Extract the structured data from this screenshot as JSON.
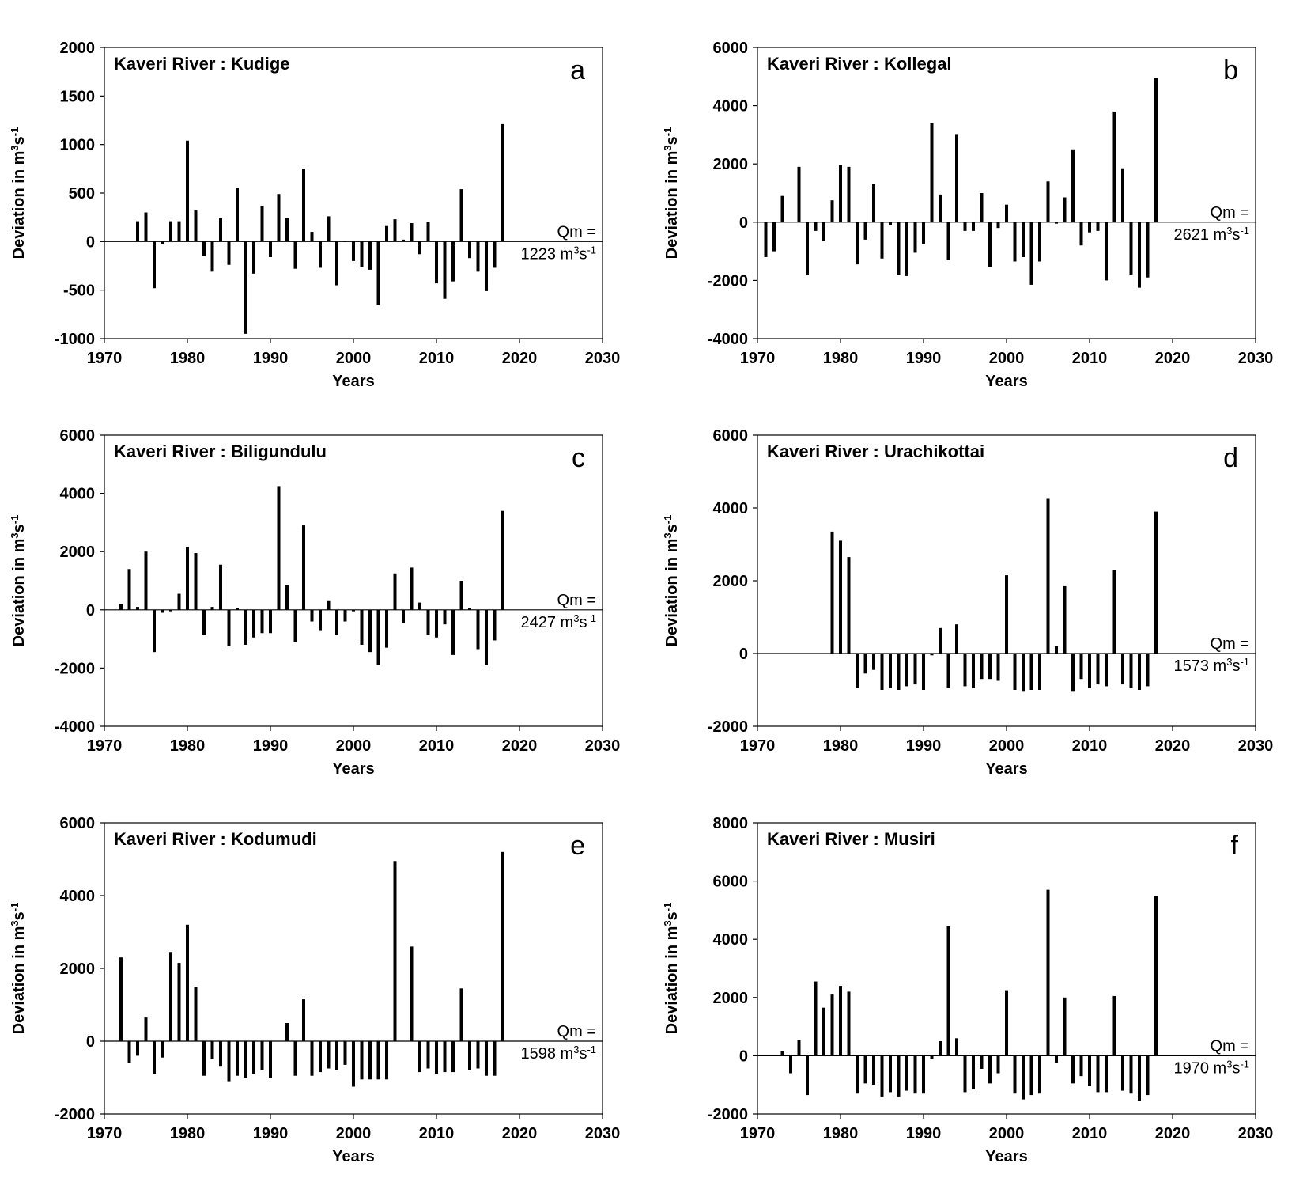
{
  "chart_data": [
    {
      "type": "bar",
      "title": "Kaveri River : Kudige",
      "panel_letter": "a",
      "xlabel": "Years",
      "ylabel": "Deviation in m3s-1",
      "xlim": [
        1970,
        2030
      ],
      "ylim": [
        -1000,
        2000
      ],
      "xticks": [
        1970,
        1980,
        1990,
        2000,
        2010,
        2020,
        2030
      ],
      "yticks": [
        -1000,
        -500,
        0,
        500,
        1000,
        1500,
        2000
      ],
      "qm_label": "Qm =",
      "qm_value": "1223 m3s-1",
      "years": [
        1974,
        1975,
        1976,
        1977,
        1978,
        1979,
        1980,
        1981,
        1982,
        1983,
        1984,
        1985,
        1986,
        1987,
        1988,
        1989,
        1990,
        1991,
        1992,
        1993,
        1994,
        1995,
        1996,
        1997,
        1998,
        1999,
        2000,
        2001,
        2002,
        2003,
        2004,
        2005,
        2006,
        2007,
        2008,
        2009,
        2010,
        2011,
        2012,
        2013,
        2014,
        2015,
        2016,
        2017,
        2018
      ],
      "values": [
        210,
        300,
        -480,
        -30,
        210,
        210,
        1040,
        320,
        -150,
        -310,
        240,
        -240,
        550,
        -950,
        -330,
        370,
        -160,
        490,
        240,
        -280,
        750,
        100,
        -270,
        260,
        -450,
        0,
        -200,
        -260,
        -290,
        -650,
        160,
        230,
        20,
        190,
        -130,
        200,
        -430,
        -590,
        -410,
        540,
        -170,
        -310,
        -510,
        -270,
        1210
      ]
    },
    {
      "type": "bar",
      "title": "Kaveri River : Kollegal",
      "panel_letter": "b",
      "xlabel": "Years",
      "ylabel": "Deviation in m3s-1",
      "xlim": [
        1970,
        2030
      ],
      "ylim": [
        -4000,
        6000
      ],
      "xticks": [
        1970,
        1980,
        1990,
        2000,
        2010,
        2020,
        2030
      ],
      "yticks": [
        -4000,
        -2000,
        0,
        2000,
        4000,
        6000
      ],
      "qm_label": "Qm =",
      "qm_value": "2621 m3s-1",
      "years": [
        1971,
        1972,
        1973,
        1975,
        1976,
        1977,
        1978,
        1979,
        1980,
        1981,
        1982,
        1983,
        1984,
        1985,
        1986,
        1987,
        1988,
        1989,
        1990,
        1991,
        1992,
        1993,
        1994,
        1995,
        1996,
        1997,
        1998,
        1999,
        2000,
        2001,
        2002,
        2003,
        2004,
        2005,
        2006,
        2007,
        2008,
        2009,
        2010,
        2011,
        2012,
        2013,
        2014,
        2015,
        2016,
        2017,
        2018
      ],
      "values": [
        -1200,
        -1000,
        900,
        1900,
        -1800,
        -300,
        -650,
        750,
        1950,
        1900,
        -1450,
        -600,
        1300,
        -1250,
        -100,
        -1800,
        -1850,
        -1050,
        -750,
        3400,
        950,
        -1300,
        3000,
        -300,
        -300,
        1000,
        -1550,
        -200,
        600,
        -1350,
        -1200,
        -2150,
        -1350,
        1400,
        -50,
        850,
        2500,
        -800,
        -350,
        -300,
        -2000,
        3800,
        1850,
        -1800,
        -2250,
        -1900,
        4950
      ]
    },
    {
      "type": "bar",
      "title": "Kaveri River : Biligundulu",
      "panel_letter": "c",
      "xlabel": "Years",
      "ylabel": "Deviation in m3s-1",
      "xlim": [
        1970,
        2030
      ],
      "ylim": [
        -4000,
        6000
      ],
      "xticks": [
        1970,
        1980,
        1990,
        2000,
        2010,
        2020,
        2030
      ],
      "yticks": [
        -4000,
        -2000,
        0,
        2000,
        4000,
        6000
      ],
      "qm_label": "Qm =",
      "qm_value": "2427 m3s-1",
      "years": [
        1972,
        1973,
        1974,
        1975,
        1976,
        1977,
        1978,
        1979,
        1980,
        1981,
        1982,
        1983,
        1984,
        1985,
        1986,
        1987,
        1988,
        1989,
        1990,
        1991,
        1992,
        1993,
        1994,
        1995,
        1996,
        1997,
        1998,
        1999,
        2000,
        2001,
        2002,
        2003,
        2004,
        2005,
        2006,
        2007,
        2008,
        2009,
        2010,
        2011,
        2012,
        2013,
        2014,
        2015,
        2016,
        2017,
        2018
      ],
      "values": [
        200,
        1400,
        100,
        2000,
        -1450,
        -100,
        -50,
        550,
        2150,
        1950,
        -850,
        100,
        1550,
        -1250,
        50,
        -1200,
        -950,
        -800,
        -800,
        4250,
        850,
        -1100,
        2900,
        -400,
        -700,
        300,
        -850,
        -400,
        -50,
        -1200,
        -1450,
        -1900,
        -1300,
        1250,
        -450,
        1450,
        250,
        -850,
        -950,
        -500,
        -1550,
        1000,
        50,
        -1350,
        -1900,
        -1050,
        3400
      ]
    },
    {
      "type": "bar",
      "title": "Kaveri River : Urachikottai",
      "panel_letter": "d",
      "xlabel": "Years",
      "ylabel": "Deviation in m3s-1",
      "xlim": [
        1970,
        2030
      ],
      "ylim": [
        -2000,
        6000
      ],
      "xticks": [
        1970,
        1980,
        1990,
        2000,
        2010,
        2020,
        2030
      ],
      "yticks": [
        -2000,
        0,
        2000,
        4000,
        6000
      ],
      "qm_label": "Qm =",
      "qm_value": "1573 m3s-1",
      "years": [
        1979,
        1980,
        1981,
        1982,
        1983,
        1984,
        1985,
        1986,
        1987,
        1988,
        1989,
        1990,
        1991,
        1992,
        1993,
        1994,
        1995,
        1996,
        1997,
        1998,
        1999,
        2000,
        2001,
        2002,
        2003,
        2004,
        2005,
        2006,
        2007,
        2008,
        2009,
        2010,
        2011,
        2012,
        2013,
        2014,
        2015,
        2016,
        2017,
        2018
      ],
      "values": [
        3350,
        3100,
        2650,
        -950,
        -550,
        -450,
        -1000,
        -950,
        -1000,
        -900,
        -850,
        -1000,
        -50,
        700,
        -950,
        800,
        -900,
        -950,
        -700,
        -700,
        -750,
        2150,
        -1000,
        -1050,
        -1000,
        -1000,
        4250,
        200,
        1850,
        -1050,
        -700,
        -950,
        -850,
        -900,
        2300,
        -850,
        -950,
        -1000,
        -900,
        3900
      ]
    },
    {
      "type": "bar",
      "title": "Kaveri River : Kodumudi",
      "panel_letter": "e",
      "xlabel": "Years",
      "ylabel": "Deviation in m3s-1",
      "xlim": [
        1970,
        2030
      ],
      "ylim": [
        -2000,
        6000
      ],
      "xticks": [
        1970,
        1980,
        1990,
        2000,
        2010,
        2020,
        2030
      ],
      "yticks": [
        -2000,
        0,
        2000,
        4000,
        6000
      ],
      "qm_label": "Qm =",
      "qm_value": "1598 m3s-1",
      "years": [
        1972,
        1973,
        1974,
        1975,
        1976,
        1977,
        1978,
        1979,
        1980,
        1981,
        1982,
        1983,
        1984,
        1985,
        1986,
        1987,
        1988,
        1989,
        1990,
        1991,
        1992,
        1993,
        1994,
        1995,
        1996,
        1997,
        1998,
        1999,
        2000,
        2001,
        2002,
        2003,
        2004,
        2005,
        2006,
        2007,
        2008,
        2009,
        2010,
        2011,
        2012,
        2013,
        2014,
        2015,
        2016,
        2017,
        2018
      ],
      "values": [
        2300,
        -600,
        -400,
        650,
        -900,
        -450,
        2450,
        2150,
        3200,
        1500,
        -950,
        -500,
        -700,
        -1100,
        -950,
        -1000,
        -900,
        -800,
        -1000,
        0,
        500,
        -950,
        1150,
        -950,
        -850,
        -750,
        -800,
        -650,
        -1250,
        -1050,
        -1050,
        -1050,
        -1050,
        4950,
        0,
        2600,
        -850,
        -750,
        -900,
        -850,
        -850,
        1450,
        -800,
        -750,
        -950,
        -950,
        5200
      ]
    },
    {
      "type": "bar",
      "title": "Kaveri River : Musiri",
      "panel_letter": "f",
      "xlabel": "Years",
      "ylabel": "Deviation in m3s-1",
      "xlim": [
        1970,
        2030
      ],
      "ylim": [
        -2000,
        8000
      ],
      "xticks": [
        1970,
        1980,
        1990,
        2000,
        2010,
        2020,
        2030
      ],
      "yticks": [
        -2000,
        0,
        2000,
        4000,
        6000,
        8000
      ],
      "qm_label": "Qm =",
      "qm_value": "1970 m3s-1",
      "years": [
        1973,
        1974,
        1975,
        1976,
        1977,
        1978,
        1979,
        1980,
        1981,
        1982,
        1983,
        1984,
        1985,
        1986,
        1987,
        1988,
        1989,
        1990,
        1991,
        1992,
        1993,
        1994,
        1995,
        1996,
        1997,
        1998,
        1999,
        2000,
        2001,
        2002,
        2003,
        2004,
        2005,
        2006,
        2007,
        2008,
        2009,
        2010,
        2011,
        2012,
        2013,
        2014,
        2015,
        2016,
        2017,
        2018
      ],
      "values": [
        150,
        -600,
        550,
        -1350,
        2550,
        1650,
        2100,
        2400,
        2200,
        -1300,
        -950,
        -1000,
        -1400,
        -1250,
        -1400,
        -1200,
        -1300,
        -1300,
        -100,
        500,
        4450,
        600,
        -1250,
        -1150,
        -450,
        -950,
        -600,
        2250,
        -1300,
        -1500,
        -1350,
        -1300,
        5700,
        -250,
        2000,
        -950,
        -700,
        -1050,
        -1250,
        -1250,
        2050,
        -1200,
        -1300,
        -1550,
        -1350,
        5500
      ]
    }
  ]
}
